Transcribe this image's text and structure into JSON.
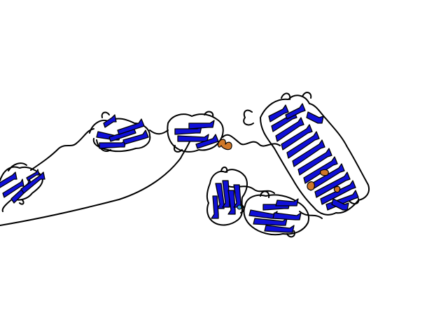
{
  "scene": {
    "background": "#ffffff",
    "colors": {
      "strand": "#1010d8",
      "coil": "#000000",
      "helix": "#d07828",
      "turn": "#3a9ad9"
    },
    "domains": [
      {
        "id": "domain-1",
        "type": "beta-sandwich"
      },
      {
        "id": "domain-2",
        "type": "beta-sandwich"
      },
      {
        "id": "domain-3",
        "type": "beta-sandwich"
      },
      {
        "id": "domain-4",
        "type": "beta-sandwich"
      },
      {
        "id": "domain-5",
        "type": "beta-sandwich"
      },
      {
        "id": "domain-6",
        "type": "beta-solenoid"
      }
    ]
  }
}
